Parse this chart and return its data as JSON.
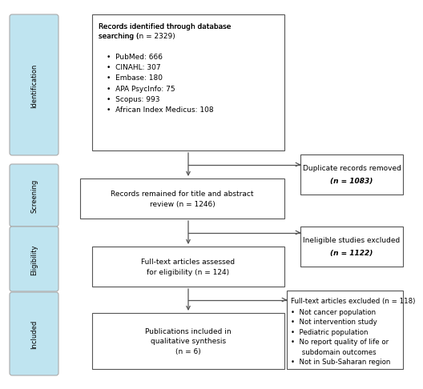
{
  "bg_color": "#ffffff",
  "box_border_color": "#555555",
  "sidebar_color": "#bfe4f0",
  "sidebar_labels": [
    "Identification",
    "Screening",
    "Eligibility",
    "Included"
  ],
  "box1_header": "Records identified through database\nsearching (",
  "box1_n": "n",
  "box1_tail": " = 2329)",
  "box1_bullets": [
    "•  PubMed: 666",
    "•  CINAHL: 307",
    "•  Embase: 180",
    "•  APA PsycInfo: 75",
    "•  Scopus: 993",
    "•  African Index Medicus: 108"
  ],
  "box2_text": "Records remained for title and abstract\nreview (n = 1246)",
  "box3_text": "Full-text articles assessed\nfor eligibility (n = 124)",
  "box4_text": "Publications included in\nqualitative synthesis\n(n = 6)",
  "side_box1_line1": "Duplicate records removed",
  "side_box1_line2": "(n = 1083)",
  "side_box2_line1": "Ineligible studies excluded",
  "side_box2_line2": "(n = 1122)",
  "side_box3_header": "Full-text articles excluded (n = 118)",
  "side_box3_bullets": [
    "•  Not cancer population",
    "•  Not intervention study",
    "•  Pediatric population",
    "•  No report quality of life or",
    "     subdomain outcomes",
    "•  Not in Sub-Saharan region"
  ],
  "arrow_color": "#555555",
  "font_size": 6.5,
  "sidebar_font_size": 6.0
}
